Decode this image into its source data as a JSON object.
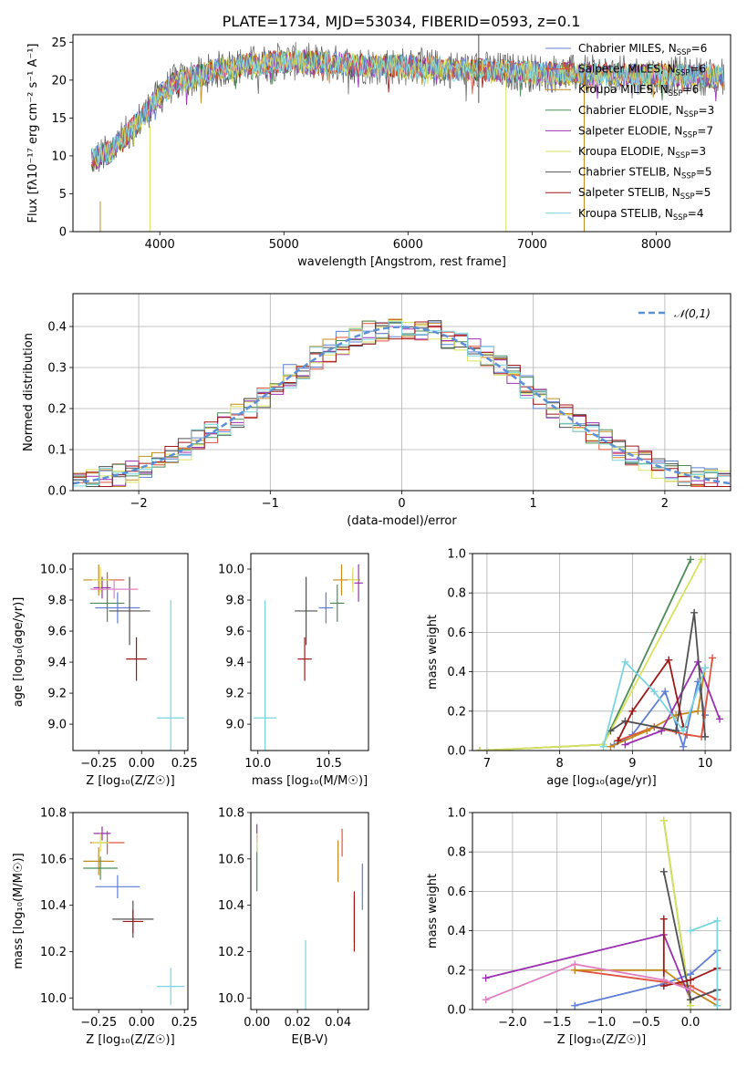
{
  "title": "PLATE=1734, MJD=53034, FIBERID=0593, z=0.1",
  "colors": {
    "chabrier_miles": "#5f7fd6",
    "salpeter_miles": "#e0523d",
    "kroupa_miles": "#c48a1c",
    "chabrier_elodie": "#4c8a58",
    "salpeter_elodie": "#9a2fb0",
    "kroupa_elodie": "#d7e35a",
    "chabrier_stelib": "#505050",
    "salpeter_stelib": "#a01818",
    "kroupa_stelib": "#79d5df",
    "gauss": "#5b8fd6"
  },
  "chart_data": [
    {
      "id": "spectrum",
      "type": "line",
      "title": "PLATE=1734, MJD=53034, FIBERID=0593, z=0.1",
      "xlabel": "wavelength [Angstrom, rest frame]",
      "ylabel": "Flux [fλ10⁻¹⁷ erg cm⁻² s⁻¹ A⁻¹]",
      "xlim": [
        3300,
        8600
      ],
      "ylim": [
        0,
        26
      ],
      "xticks": [
        4000,
        5000,
        6000,
        7000,
        8000
      ],
      "yticks": [
        0,
        5,
        10,
        15,
        20,
        25
      ],
      "legend_position": "top-right",
      "legend": [
        "Chabrier MILES, N_SSP=6",
        "Salpeter MILES, N_SSP=6",
        "Kroupa MILES, N_SSP=6",
        "Chabrier ELODIE, N_SSP=3",
        "Salpeter ELODIE, N_SSP=7",
        "Kroupa ELODIE, N_SSP=3",
        "Chabrier STELIB, N_SSP=5",
        "Salpeter STELIB, N_SSP=5",
        "Kroupa STELIB, N_SSP=4"
      ],
      "continuum": {
        "x": [
          3450,
          3600,
          3800,
          3950,
          4100,
          4300,
          4500,
          4700,
          5000,
          5300,
          5600,
          6000,
          6300,
          6600,
          7000,
          7400,
          7800,
          8200,
          8550
        ],
        "y": [
          9.5,
          10.5,
          14,
          17,
          19.5,
          20.5,
          21.5,
          22,
          22.5,
          22.3,
          22,
          21.8,
          21.5,
          21.3,
          21,
          20.8,
          20.7,
          20.6,
          20.5
        ]
      }
    },
    {
      "id": "residuals",
      "type": "histogram",
      "xlabel": "(data-model)/error",
      "ylabel": "Normed distribution",
      "xlim": [
        -2.5,
        2.5
      ],
      "ylim": [
        0,
        0.48
      ],
      "xticks": [
        -2,
        -1,
        0,
        1,
        2
      ],
      "yticks": [
        0.0,
        0.1,
        0.2,
        0.3,
        0.4
      ],
      "grid": true,
      "legend_position": "top-right",
      "legend": [
        "𝒩(0,1)"
      ]
    },
    {
      "id": "age_vs_Z",
      "type": "scatter",
      "xlabel": "Z [log₁₀(Z/Z☉)]",
      "ylabel": "age  [log₁₀(age/yr)]",
      "xlim": [
        -0.4,
        0.27
      ],
      "ylim": [
        8.83,
        10.1
      ],
      "xticks": [
        -0.25,
        0.0,
        0.25
      ],
      "yticks": [
        9.0,
        9.2,
        9.4,
        9.6,
        9.8,
        10.0
      ],
      "points": [
        {
          "x": -0.14,
          "y": 9.75,
          "xerr": 0.13,
          "yerr": 0.1,
          "c": "chabrier_miles"
        },
        {
          "x": -0.2,
          "y": 9.93,
          "xerr": 0.1,
          "yerr": 0.05,
          "c": "salpeter_miles"
        },
        {
          "x": -0.25,
          "y": 9.93,
          "xerr": 0.09,
          "yerr": 0.1,
          "c": "kroupa_miles"
        },
        {
          "x": -0.2,
          "y": 9.78,
          "xerr": 0.1,
          "yerr": 0.12,
          "c": "chabrier_elodie"
        },
        {
          "x": -0.23,
          "y": 9.88,
          "xerr": 0.05,
          "yerr": 0.07,
          "c": "salpeter_elodie"
        },
        {
          "x": -0.24,
          "y": 9.93,
          "xerr": 0.05,
          "yerr": 0.08,
          "c": "kroupa_elodie"
        },
        {
          "x": -0.07,
          "y": 9.73,
          "xerr": 0.12,
          "yerr": 0.22,
          "c": "chabrier_stelib"
        },
        {
          "x": -0.03,
          "y": 9.42,
          "xerr": 0.06,
          "yerr": 0.14,
          "c": "salpeter_stelib"
        },
        {
          "x": 0.17,
          "y": 9.04,
          "xerr": 0.08,
          "yerr": 0.76,
          "c": "kroupa_stelib"
        },
        {
          "x": -0.16,
          "y": 9.87,
          "xerr": 0.14,
          "yerr": 0.06,
          "c": "salpeter_elodie_2"
        }
      ]
    },
    {
      "id": "age_vs_mass",
      "type": "scatter",
      "xlabel": "mass [log₁₀(M/M☉)]",
      "ylabel": "",
      "xlim": [
        9.95,
        10.78
      ],
      "ylim": [
        8.83,
        10.1
      ],
      "xticks": [
        10.0,
        10.5
      ],
      "yticks": [
        9.0,
        9.2,
        9.4,
        9.6,
        9.8,
        10.0
      ],
      "points": [
        {
          "x": 10.48,
          "y": 9.75,
          "xerr": 0.05,
          "yerr": 0.1,
          "c": "chabrier_miles"
        },
        {
          "x": 10.67,
          "y": 9.93,
          "xerr": 0.05,
          "yerr": 0.05,
          "c": "salpeter_miles"
        },
        {
          "x": 10.59,
          "y": 9.93,
          "xerr": 0.06,
          "yerr": 0.1,
          "c": "kroupa_miles"
        },
        {
          "x": 10.56,
          "y": 9.78,
          "xerr": 0.05,
          "yerr": 0.12,
          "c": "chabrier_elodie"
        },
        {
          "x": 10.71,
          "y": 9.91,
          "xerr": 0.03,
          "yerr": 0.12,
          "c": "salpeter_elodie"
        },
        {
          "x": 10.67,
          "y": 9.93,
          "xerr": 0.04,
          "yerr": 0.08,
          "c": "kroupa_elodie"
        },
        {
          "x": 10.34,
          "y": 9.73,
          "xerr": 0.08,
          "yerr": 0.22,
          "c": "chabrier_stelib"
        },
        {
          "x": 10.33,
          "y": 9.42,
          "xerr": 0.05,
          "yerr": 0.14,
          "c": "salpeter_stelib"
        },
        {
          "x": 10.05,
          "y": 9.04,
          "xerr": 0.08,
          "yerr": 0.76,
          "c": "kroupa_stelib"
        }
      ]
    },
    {
      "id": "weight_vs_age",
      "type": "line",
      "xlabel": "age  [log₁₀(age/yr)]",
      "ylabel": "mass weight",
      "xlim": [
        6.8,
        10.35
      ],
      "ylim": [
        0,
        1.0
      ],
      "xticks": [
        7,
        8,
        9,
        10
      ],
      "yticks": [
        0.0,
        0.2,
        0.4,
        0.6,
        0.8,
        1.0
      ],
      "grid": true,
      "series": [
        {
          "c": "chabrier_miles",
          "x": [
            8.75,
            9.0,
            9.45,
            9.7,
            9.9,
            10.0
          ],
          "y": [
            0.03,
            0.08,
            0.3,
            0.02,
            0.35,
            0.18
          ]
        },
        {
          "c": "salpeter_miles",
          "x": [
            8.8,
            9.3,
            9.75,
            9.95,
            10.1
          ],
          "y": [
            0.05,
            0.12,
            0.08,
            0.07,
            0.47
          ]
        },
        {
          "c": "kroupa_miles",
          "x": [
            8.7,
            9.2,
            9.6,
            9.9,
            10.0
          ],
          "y": [
            0.02,
            0.1,
            0.18,
            0.2,
            0.42
          ]
        },
        {
          "c": "chabrier_elodie",
          "x": [
            6.9,
            8.6,
            9.8
          ],
          "y": [
            0.0,
            0.03,
            0.97
          ]
        },
        {
          "c": "salpeter_elodie",
          "x": [
            8.9,
            9.4,
            9.9,
            10.2
          ],
          "y": [
            0.03,
            0.1,
            0.45,
            0.16
          ]
        },
        {
          "c": "kroupa_elodie",
          "x": [
            6.9,
            8.6,
            9.95
          ],
          "y": [
            0.0,
            0.03,
            0.97
          ]
        },
        {
          "c": "chabrier_stelib",
          "x": [
            8.7,
            8.9,
            9.6,
            9.85,
            10.0
          ],
          "y": [
            0.1,
            0.15,
            0.1,
            0.7,
            0.07
          ]
        },
        {
          "c": "salpeter_stelib",
          "x": [
            8.8,
            9.0,
            9.5,
            9.7
          ],
          "y": [
            0.05,
            0.2,
            0.46,
            0.12
          ]
        },
        {
          "c": "kroupa_stelib",
          "x": [
            8.6,
            8.9,
            9.3,
            9.7,
            10.0
          ],
          "y": [
            0.02,
            0.45,
            0.3,
            0.1,
            0.42
          ]
        }
      ]
    },
    {
      "id": "mass_vs_Z",
      "type": "scatter",
      "xlabel": "Z [log₁₀(Z/Z☉)]",
      "ylabel": "mass [log₁₀(M/M☉)]",
      "xlim": [
        -0.4,
        0.27
      ],
      "ylim": [
        9.95,
        10.8
      ],
      "xticks": [
        -0.25,
        0.0,
        0.25
      ],
      "yticks": [
        10.0,
        10.2,
        10.4,
        10.6,
        10.8
      ],
      "points": [
        {
          "x": -0.14,
          "y": 10.48,
          "xerr": 0.13,
          "yerr": 0.05,
          "c": "chabrier_miles"
        },
        {
          "x": -0.2,
          "y": 10.67,
          "xerr": 0.1,
          "yerr": 0.05,
          "c": "salpeter_miles"
        },
        {
          "x": -0.25,
          "y": 10.59,
          "xerr": 0.09,
          "yerr": 0.06,
          "c": "kroupa_miles"
        },
        {
          "x": -0.24,
          "y": 10.56,
          "xerr": 0.1,
          "yerr": 0.05,
          "c": "chabrier_elodie"
        },
        {
          "x": -0.23,
          "y": 10.71,
          "xerr": 0.05,
          "yerr": 0.03,
          "c": "salpeter_elodie"
        },
        {
          "x": -0.24,
          "y": 10.67,
          "xerr": 0.05,
          "yerr": 0.04,
          "c": "kroupa_elodie"
        },
        {
          "x": -0.05,
          "y": 10.34,
          "xerr": 0.12,
          "yerr": 0.08,
          "c": "chabrier_stelib"
        },
        {
          "x": -0.05,
          "y": 10.33,
          "xerr": 0.06,
          "yerr": 0.05,
          "c": "salpeter_stelib"
        },
        {
          "x": 0.17,
          "y": 10.05,
          "xerr": 0.08,
          "yerr": 0.08,
          "c": "kroupa_stelib"
        }
      ]
    },
    {
      "id": "mass_vs_ebv",
      "type": "scatter",
      "xlabel": "E(B-V)",
      "ylabel": "",
      "xlim": [
        -0.003,
        0.055
      ],
      "ylim": [
        9.95,
        10.8
      ],
      "xticks": [
        0.0,
        0.02,
        0.04
      ],
      "yticks": [
        10.0,
        10.2,
        10.4,
        10.6,
        10.8
      ],
      "points": [
        {
          "x": 0.052,
          "y": 10.48,
          "xerr": 0.0,
          "yerr": 0.1,
          "c": "chabrier_miles"
        },
        {
          "x": 0.042,
          "y": 10.67,
          "xerr": 0.0,
          "yerr": 0.06,
          "c": "salpeter_miles"
        },
        {
          "x": 0.04,
          "y": 10.59,
          "xerr": 0.0,
          "yerr": 0.09,
          "c": "kroupa_miles"
        },
        {
          "x": 0.0,
          "y": 10.56,
          "xerr": 0.0,
          "yerr": 0.1,
          "c": "chabrier_elodie"
        },
        {
          "x": 0.0,
          "y": 10.71,
          "xerr": 0.0,
          "yerr": 0.04,
          "c": "salpeter_elodie"
        },
        {
          "x": 0.0,
          "y": 10.67,
          "xerr": 0.0,
          "yerr": 0.04,
          "c": "kroupa_elodie"
        },
        {
          "x": 0.048,
          "y": 10.34,
          "xerr": 0.0,
          "yerr": 0.1,
          "c": "chabrier_stelib"
        },
        {
          "x": 0.048,
          "y": 10.33,
          "xerr": 0.0,
          "yerr": 0.13,
          "c": "salpeter_stelib"
        },
        {
          "x": 0.024,
          "y": 10.05,
          "xerr": 0.0,
          "yerr": 0.2,
          "c": "kroupa_stelib"
        }
      ]
    },
    {
      "id": "weight_vs_Z",
      "type": "line",
      "xlabel": "Z [log₁₀(Z/Z☉)]",
      "ylabel": "mass weight",
      "xlim": [
        -2.45,
        0.45
      ],
      "ylim": [
        0,
        1.0
      ],
      "xticks": [
        -2.0,
        -1.5,
        -1.0,
        -0.5,
        0.0
      ],
      "yticks": [
        0.0,
        0.2,
        0.4,
        0.6,
        0.8,
        1.0
      ],
      "grid": true,
      "series": [
        {
          "c": "chabrier_miles",
          "x": [
            -1.3,
            -0.3,
            0.0,
            0.3
          ],
          "y": [
            0.02,
            0.13,
            0.18,
            0.3
          ]
        },
        {
          "c": "salpeter_miles",
          "x": [
            -1.3,
            -0.3,
            0.0,
            0.3
          ],
          "y": [
            0.2,
            0.14,
            0.12,
            0.05
          ]
        },
        {
          "c": "kroupa_miles",
          "x": [
            -1.3,
            -0.3,
            0.0,
            0.3
          ],
          "y": [
            0.2,
            0.2,
            0.1,
            0.02
          ]
        },
        {
          "c": "chabrier_elodie",
          "x": [
            -0.3,
            0.0
          ],
          "y": [
            0.96,
            0.02
          ]
        },
        {
          "c": "salpeter_elodie",
          "x": [
            -2.3,
            -0.3,
            0.0,
            0.3
          ],
          "y": [
            0.16,
            0.38,
            0.05,
            0.1
          ]
        },
        {
          "c": "kroupa_elodie",
          "x": [
            -0.3,
            0.0
          ],
          "y": [
            0.96,
            0.02
          ]
        },
        {
          "c": "chabrier_stelib",
          "x": [
            -0.3,
            0.0,
            0.3
          ],
          "y": [
            0.7,
            0.05,
            0.1
          ]
        },
        {
          "c": "salpeter_stelib",
          "x": [
            -0.3,
            -0.3,
            0.0,
            0.3
          ],
          "y": [
            0.46,
            0.12,
            0.15,
            0.21
          ]
        },
        {
          "c": "kroupa_stelib",
          "x": [
            0.0,
            0.3,
            0.3
          ],
          "y": [
            0.4,
            0.45,
            0.02
          ]
        },
        {
          "c": "salpeter_elodie_2",
          "x": [
            -2.3,
            -1.3,
            -0.3,
            0.0
          ],
          "y": [
            0.05,
            0.23,
            0.15,
            0.1
          ]
        }
      ]
    }
  ]
}
